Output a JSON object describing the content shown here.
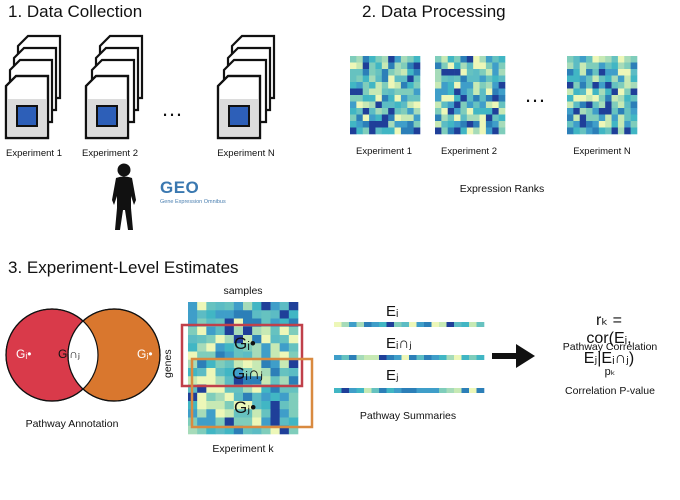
{
  "sections": {
    "collection": {
      "title": "1. Data Collection"
    },
    "processing": {
      "title": "2. Data Processing"
    },
    "estimates": {
      "title": "3. Experiment-Level Estimates"
    }
  },
  "collection": {
    "experiments": [
      "Experiment 1",
      "Experiment 2",
      "Experiment N"
    ],
    "ellipsis": "…",
    "geo": {
      "logo": "GEO",
      "subtitle": "Gene Expression Omnibus"
    }
  },
  "processing": {
    "experiments": [
      "Experiment 1",
      "Experiment 2",
      "Experiment N"
    ],
    "ellipsis": "…",
    "caption": "Expression Ranks"
  },
  "estimates": {
    "venn": {
      "left": "Gᵢ•",
      "middle": "Gᵢ∩ⱼ",
      "right": "Gⱼ•",
      "caption": "Pathway Annotation"
    },
    "matrix": {
      "samples_label": "samples",
      "genes_label": "genes",
      "box_labels": [
        "Gᵢ•",
        "Gᵢ∩ⱼ",
        "Gⱼ•"
      ],
      "caption": "Experiment k"
    },
    "summaries": {
      "labels": [
        "Eᵢ",
        "Eᵢ∩ⱼ",
        "Eⱼ"
      ],
      "caption": "Pathway Summaries"
    },
    "correlation": {
      "formula": "rₖ = cor(Eᵢ, Eⱼ|Eᵢ∩ⱼ)",
      "label": "Pathway Correlation",
      "p_symbol": "pₖ",
      "p_label": "Correlation P-value"
    }
  },
  "colors": {
    "heat_light": "#edf7b8",
    "heat_mid": "#5cbcc4",
    "heat_dark": "#1f3f99",
    "venn_left": "#d93a4a",
    "venn_right": "#d9772e",
    "box_red": "#c0404a",
    "box_orange": "#d98a40",
    "doc_blue": "#2d5fb8"
  }
}
